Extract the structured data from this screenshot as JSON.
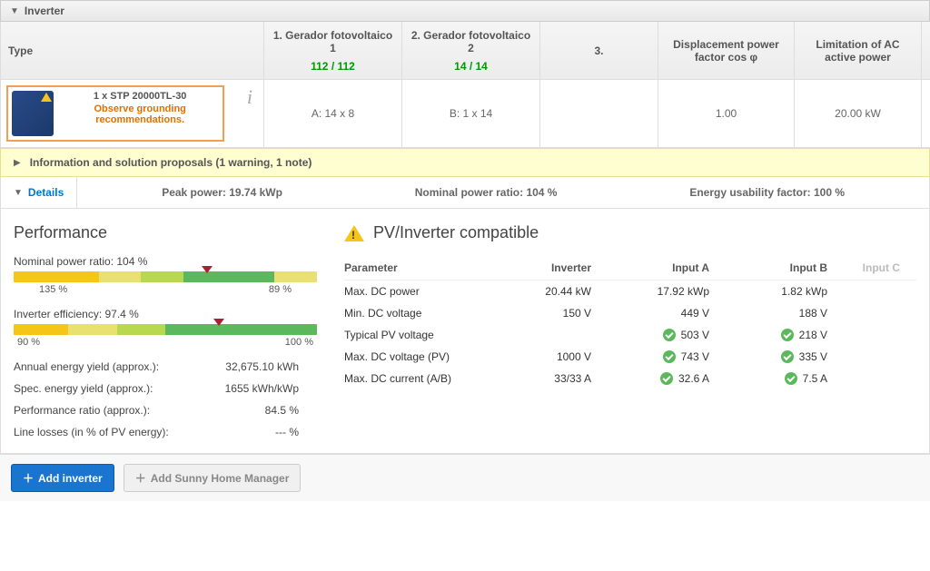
{
  "panel": {
    "title": "Inverter"
  },
  "table": {
    "headers": {
      "type": "Type",
      "gen1": {
        "label": "1. Gerador fotovoltaico 1",
        "ratio": "112 / 112"
      },
      "gen2": {
        "label": "2. Gerador fotovoltaico 2",
        "ratio": "14 / 14"
      },
      "gen3": {
        "label": "3."
      },
      "disp": "Displacement power factor cos φ",
      "limit": "Limitation of AC active power"
    },
    "row": {
      "name": "1 x STP 20000TL-30",
      "warning": "Observe grounding recommendations.",
      "gen1": "A: 14 x 8",
      "gen2": "B: 1 x 14",
      "gen3": "",
      "disp": "1.00",
      "limit": "20.00 kW"
    }
  },
  "infoBar": {
    "text": "Information and solution proposals (1 warning, 1 note)"
  },
  "detailsBar": {
    "tab": "Details",
    "peak": "Peak power: 19.74 kWp",
    "ratio": "Nominal power ratio: 104 %",
    "usability": "Energy usability factor: 100 %"
  },
  "performance": {
    "title": "Performance",
    "nominal": {
      "label": "Nominal power ratio: 104 %",
      "tick_left": "135 %",
      "tick_right": "89 %",
      "marker_left_pct": 62,
      "segments": [
        {
          "color": "#f5c518",
          "w": 28
        },
        {
          "color": "#e8e070",
          "w": 14
        },
        {
          "color": "#b8d850",
          "w": 14
        },
        {
          "color": "#5cb85c",
          "w": 30
        },
        {
          "color": "#e8e070",
          "w": 14
        }
      ]
    },
    "efficiency": {
      "label": "Inverter efficiency: 97.4 %",
      "tick_left": "90 %",
      "tick_right": "100 %",
      "marker_left_pct": 66,
      "segments": [
        {
          "color": "#f5c518",
          "w": 18
        },
        {
          "color": "#e8e070",
          "w": 16
        },
        {
          "color": "#b8d850",
          "w": 16
        },
        {
          "color": "#5cb85c",
          "w": 50
        }
      ]
    },
    "rows": [
      {
        "k": "Annual energy yield (approx.):",
        "v": "32,675.10  kWh"
      },
      {
        "k": "Spec. energy yield (approx.):",
        "v": "1655  kWh/kWp"
      },
      {
        "k": "Performance ratio (approx.):",
        "v": "84.5  %"
      },
      {
        "k": "Line losses (in % of PV energy):",
        "v": "---  %"
      }
    ]
  },
  "compat": {
    "title": "PV/Inverter compatible",
    "headers": {
      "param": "Parameter",
      "inv": "Inverter",
      "a": "Input A",
      "b": "Input B",
      "c": "Input C"
    },
    "rows": [
      {
        "param": "Max. DC power",
        "inv": "20.44  kW",
        "a": "17.92  kWp",
        "b": "1.82  kWp",
        "a_ok": false,
        "b_ok": false
      },
      {
        "param": "Min. DC voltage",
        "inv": "150  V",
        "a": "449  V",
        "b": "188  V",
        "a_ok": false,
        "b_ok": false
      },
      {
        "param": "Typical PV voltage",
        "inv": "",
        "a": "503  V",
        "b": "218  V",
        "a_ok": true,
        "b_ok": true
      },
      {
        "param": "Max. DC voltage (PV)",
        "inv": "1000  V",
        "a": "743  V",
        "b": "335  V",
        "a_ok": true,
        "b_ok": true
      },
      {
        "param": "Max. DC current (A/B)",
        "inv": "33/33  A",
        "a": "32.6  A",
        "b": "7.5  A",
        "a_ok": true,
        "b_ok": true
      }
    ]
  },
  "footer": {
    "add_inverter": "Add inverter",
    "add_shm": "Add Sunny Home Manager"
  }
}
